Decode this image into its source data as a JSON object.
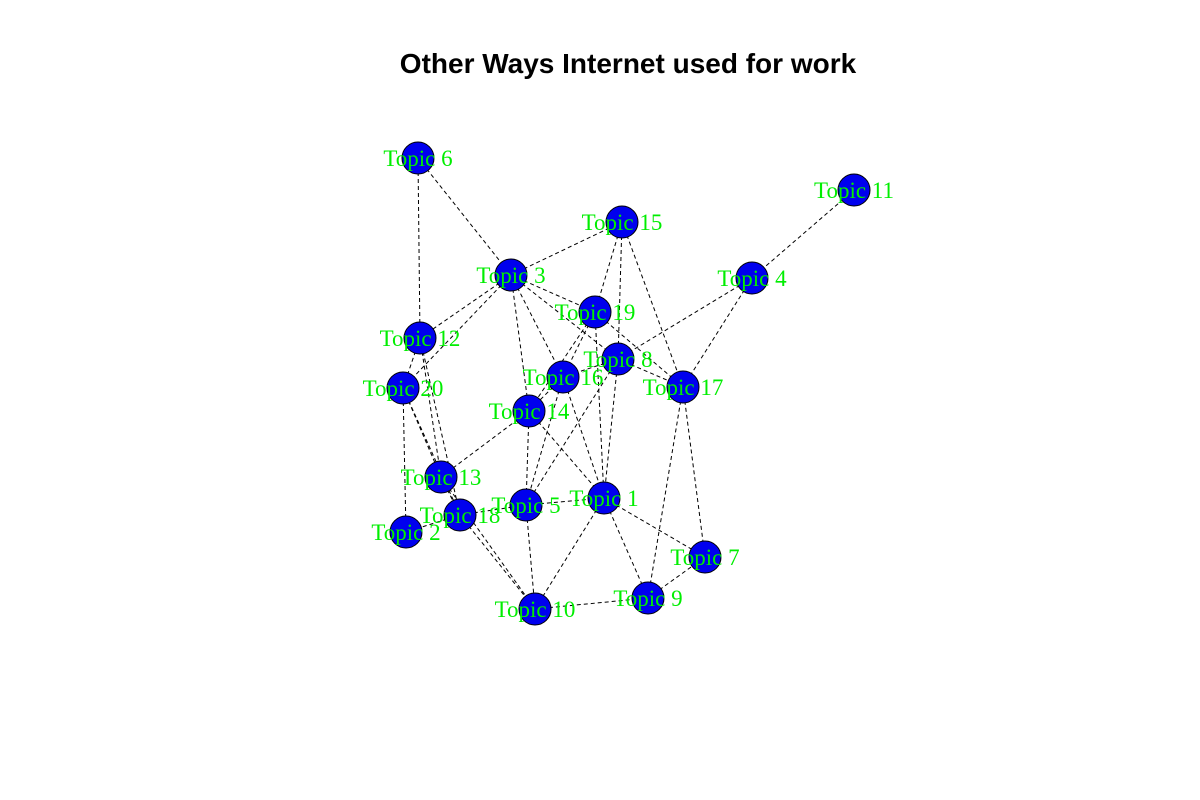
{
  "title": "Other Ways Internet used for work",
  "colors": {
    "node_fill": "#0000ee",
    "label": "#00ee00",
    "edge": "#000000"
  },
  "nodes": [
    {
      "id": "t1",
      "label": "Topic 1"
    },
    {
      "id": "t2",
      "label": "Topic 2"
    },
    {
      "id": "t3",
      "label": "Topic 3"
    },
    {
      "id": "t4",
      "label": "Topic 4"
    },
    {
      "id": "t5",
      "label": "Topic 5"
    },
    {
      "id": "t6",
      "label": "Topic 6"
    },
    {
      "id": "t7",
      "label": "Topic 7"
    },
    {
      "id": "t8",
      "label": "Topic 8"
    },
    {
      "id": "t9",
      "label": "Topic 9"
    },
    {
      "id": "t10",
      "label": "Topic 10"
    },
    {
      "id": "t11",
      "label": "Topic 11"
    },
    {
      "id": "t12",
      "label": "Topic 12"
    },
    {
      "id": "t13",
      "label": "Topic 13"
    },
    {
      "id": "t14",
      "label": "Topic 14"
    },
    {
      "id": "t15",
      "label": "Topic 15"
    },
    {
      "id": "t16",
      "label": "Topic 16"
    },
    {
      "id": "t17",
      "label": "Topic 17"
    },
    {
      "id": "t18",
      "label": "Topic 18"
    },
    {
      "id": "t19",
      "label": "Topic 19"
    },
    {
      "id": "t20",
      "label": "Topic 20"
    }
  ],
  "edges": [
    [
      "t6",
      "t3"
    ],
    [
      "t6",
      "t12"
    ],
    [
      "t11",
      "t4"
    ],
    [
      "t15",
      "t3"
    ],
    [
      "t15",
      "t19"
    ],
    [
      "t15",
      "t8"
    ],
    [
      "t15",
      "t17"
    ],
    [
      "t3",
      "t12"
    ],
    [
      "t3",
      "t19"
    ],
    [
      "t3",
      "t8"
    ],
    [
      "t3",
      "t16"
    ],
    [
      "t3",
      "t14"
    ],
    [
      "t3",
      "t20"
    ],
    [
      "t4",
      "t17"
    ],
    [
      "t4",
      "t8"
    ],
    [
      "t19",
      "t16"
    ],
    [
      "t19",
      "t14"
    ],
    [
      "t19",
      "t17"
    ],
    [
      "t19",
      "t1"
    ],
    [
      "t8",
      "t16"
    ],
    [
      "t8",
      "t17"
    ],
    [
      "t8",
      "t5"
    ],
    [
      "t8",
      "t1"
    ],
    [
      "t12",
      "t20"
    ],
    [
      "t12",
      "t13"
    ],
    [
      "t12",
      "t18"
    ],
    [
      "t20",
      "t13"
    ],
    [
      "t20",
      "t18"
    ],
    [
      "t20",
      "t2"
    ],
    [
      "t16",
      "t14"
    ],
    [
      "t16",
      "t5"
    ],
    [
      "t16",
      "t1"
    ],
    [
      "t14",
      "t13"
    ],
    [
      "t14",
      "t5"
    ],
    [
      "t14",
      "t1"
    ],
    [
      "t17",
      "t7"
    ],
    [
      "t17",
      "t9"
    ],
    [
      "t13",
      "t18"
    ],
    [
      "t13",
      "t10"
    ],
    [
      "t18",
      "t5"
    ],
    [
      "t18",
      "t10"
    ],
    [
      "t18",
      "t2"
    ],
    [
      "t5",
      "t1"
    ],
    [
      "t5",
      "t10"
    ],
    [
      "t1",
      "t10"
    ],
    [
      "t1",
      "t9"
    ],
    [
      "t1",
      "t7"
    ],
    [
      "t10",
      "t9"
    ],
    [
      "t9",
      "t7"
    ]
  ]
}
